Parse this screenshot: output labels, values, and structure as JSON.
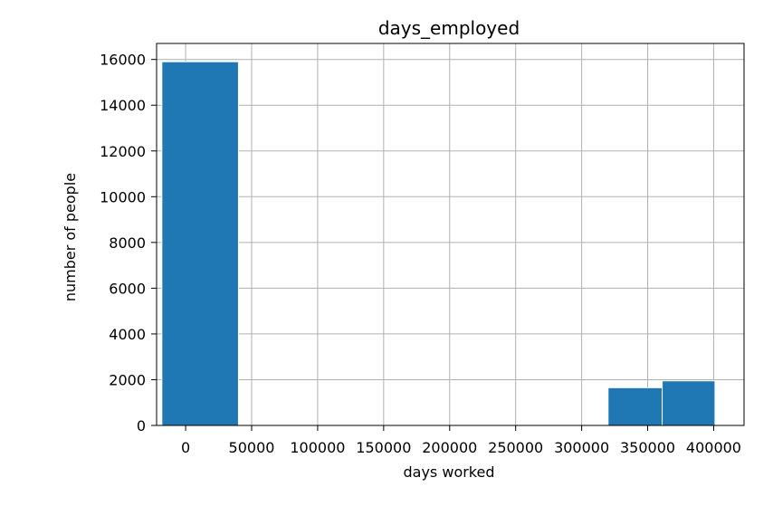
{
  "chart_data": {
    "type": "bar",
    "title": "days_employed",
    "xlabel": "days worked",
    "ylabel": "number of people",
    "xlim": [
      -22000,
      423000
    ],
    "ylim": [
      0,
      16700
    ],
    "grid": true,
    "bar_color": "#1f77b4",
    "bins": [
      {
        "x0": -18000,
        "x1": 40000,
        "value": 15900
      },
      {
        "x0": 40000,
        "x1": 82000,
        "value": 0
      },
      {
        "x0": 82000,
        "x1": 124000,
        "value": 0
      },
      {
        "x0": 124000,
        "x1": 166000,
        "value": 0
      },
      {
        "x0": 166000,
        "x1": 208000,
        "value": 0
      },
      {
        "x0": 208000,
        "x1": 250000,
        "value": 0
      },
      {
        "x0": 250000,
        "x1": 292000,
        "value": 0
      },
      {
        "x0": 292000,
        "x1": 320000,
        "value": 0
      },
      {
        "x0": 320000,
        "x1": 361000,
        "value": 1650
      },
      {
        "x0": 361000,
        "x1": 401000,
        "value": 1950
      }
    ],
    "xticks": [
      {
        "value": 0,
        "label": "0"
      },
      {
        "value": 50000,
        "label": "50000"
      },
      {
        "value": 100000,
        "label": "100000"
      },
      {
        "value": 150000,
        "label": "150000"
      },
      {
        "value": 200000,
        "label": "200000"
      },
      {
        "value": 250000,
        "label": "250000"
      },
      {
        "value": 300000,
        "label": "300000"
      },
      {
        "value": 350000,
        "label": "350000"
      },
      {
        "value": 400000,
        "label": "400000"
      }
    ],
    "yticks": [
      {
        "value": 0,
        "label": "0"
      },
      {
        "value": 2000,
        "label": "2000"
      },
      {
        "value": 4000,
        "label": "4000"
      },
      {
        "value": 6000,
        "label": "6000"
      },
      {
        "value": 8000,
        "label": "8000"
      },
      {
        "value": 10000,
        "label": "10000"
      },
      {
        "value": 12000,
        "label": "12000"
      },
      {
        "value": 14000,
        "label": "14000"
      },
      {
        "value": 16000,
        "label": "16000"
      }
    ]
  }
}
